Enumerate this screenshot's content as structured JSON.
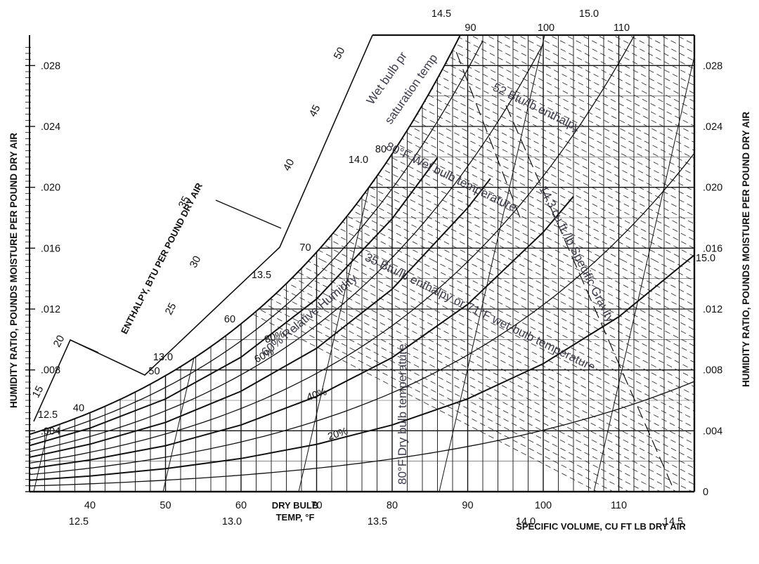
{
  "chart_data": {
    "type": "line",
    "title": "",
    "xlabel": "DRY BULB TEMP, °F",
    "xlabel_line1": "DRY BULB",
    "xlabel_line2": "TEMP, °F",
    "ylabel_left": "HUMIDITY RATIO, POUNDS MOISTURE PER POUND DRY AIR",
    "ylabel_right": "HUMIDITY RATIO, POUNDS MOISTURE PER POUND DRY AIR",
    "enthalpy_label": "ENTHALPY, BTU PER POUND DRY AIR",
    "volume_label": "SPECIFIC VOLUME, CU FT LB DRY AIR",
    "xlim": [
      32,
      120
    ],
    "ylim": [
      0,
      0.03
    ],
    "x_ticks": [
      "40",
      "50",
      "60",
      "70",
      "80",
      "90",
      "100",
      "110"
    ],
    "y_ticks_left": [
      ".004",
      ".008",
      ".012",
      ".016",
      ".020",
      ".024",
      ".028"
    ],
    "y_ticks_right": [
      "0",
      ".004",
      ".008",
      ".012",
      ".016",
      ".020",
      ".024",
      ".028"
    ],
    "top_ticks": [
      "90",
      "100",
      "110"
    ],
    "saturation_temp_labels": [
      "40",
      "50",
      "60",
      "70",
      "80"
    ],
    "enthalpy_scale_labels": [
      "15",
      "20",
      "25",
      "30",
      "35",
      "40",
      "45",
      "50"
    ],
    "volume_labels": [
      "12.5",
      "13.0",
      "13.5",
      "14.0",
      "14.5",
      "15.0"
    ],
    "rh_labels": [
      "80%",
      "60%",
      "40%",
      "20%"
    ],
    "series": [
      {
        "name": "80%",
        "x": [
          32,
          40,
          50,
          60,
          70,
          80,
          86
        ],
        "y": [
          0.00303,
          0.00417,
          0.00609,
          0.00884,
          0.01266,
          0.01794,
          0.02195
        ]
      },
      {
        "name": "60%",
        "x": [
          32,
          40,
          50,
          60,
          70,
          80,
          90,
          93
        ],
        "y": [
          0.00226,
          0.00312,
          0.00455,
          0.0066,
          0.00942,
          0.01331,
          0.01865,
          0.02057
        ]
      },
      {
        "name": "40%",
        "x": [
          32,
          40,
          50,
          60,
          70,
          80,
          90,
          100,
          104
        ],
        "y": [
          0.00151,
          0.00208,
          0.00302,
          0.00438,
          0.00626,
          0.00881,
          0.01231,
          0.01705,
          0.0194
        ]
      },
      {
        "name": "20%",
        "x": [
          32,
          40,
          50,
          60,
          70,
          80,
          90,
          100,
          110,
          120
        ],
        "y": [
          0.00075,
          0.00103,
          0.00151,
          0.00218,
          0.00311,
          0.00438,
          0.0061,
          0.00841,
          0.01149,
          0.01555
        ]
      }
    ],
    "annotations": {
      "wet_bulb": "Wet bulb pr saturation temp",
      "wet_bulb_line1": "Wet bulb pr",
      "wet_bulb_line2": "saturation temp",
      "enthalpy52": "52 Btu/lb enthalpy",
      "wb80": "80°F Wet bulb temperature",
      "vol143": "14.3 cu.ft./lb Specific Gravity",
      "enthalpy35": "35 Btu/lb enthalpy or 71°F wet-bulb temperature",
      "rh60": "60% Relative Humidity",
      "db80": "80°F Dry bulb temperature"
    },
    "grid": true,
    "legend": "none"
  },
  "colors": {
    "line": "#111111",
    "annotation": "#3c3c4a",
    "background": "#ffffff"
  }
}
